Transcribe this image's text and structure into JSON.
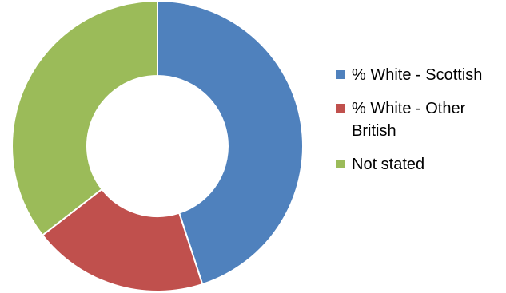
{
  "chart_data": {
    "type": "pie",
    "donut": true,
    "title": "",
    "legend_position": "right",
    "series": [
      {
        "name": "% White - Scottish",
        "value": 45,
        "color": "#4F81BD"
      },
      {
        "name": "% White - Other British",
        "value": 19.5,
        "color": "#C0504D"
      },
      {
        "name": "Not stated",
        "value": 35.5,
        "color": "#9BBB59"
      }
    ]
  },
  "legend": {
    "items": [
      {
        "label": "% White - Scottish",
        "color": "#4F81BD"
      },
      {
        "label": "% White - Other British",
        "color": "#C0504D"
      },
      {
        "label": "Not stated",
        "color": "#9BBB59"
      }
    ]
  }
}
